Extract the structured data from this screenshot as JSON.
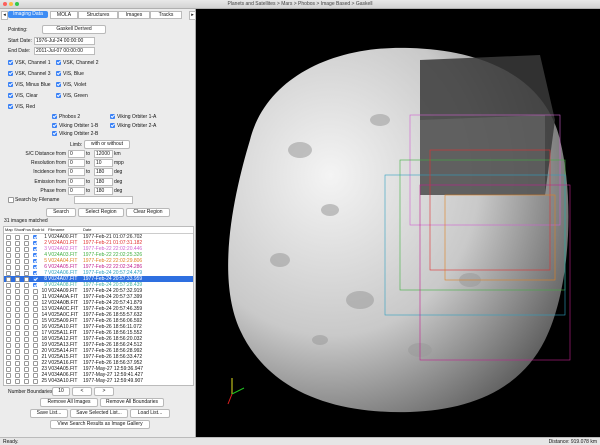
{
  "window": {
    "title": "Planets and Satellites > Mars > Phobos > Image Based > Gaskell"
  },
  "tabs": [
    "Imaging Data",
    "MOLA",
    "Structures",
    "Images",
    "Tracks"
  ],
  "form": {
    "pointing_label": "Pointing:",
    "pointing_value": "Gaskell Derived",
    "start_label": "Start Date:",
    "start_value": "1976-Jul-24 00:00:00",
    "end_label": "End Date:",
    "end_value": "2011-Jul-07 00:00:00",
    "filters": [
      "VSK, Channel 1",
      "VSK, Channel 2",
      "VSK, Channel 3",
      "VIS, Blue",
      "VIS, Minus Blue",
      "VIS, Violet",
      "VIS, Clear",
      "VIS, Green",
      "VIS, Red"
    ],
    "cameras": [
      "Phobos 2",
      "Viking Orbiter 1-A",
      "Viking Orbiter 1-B",
      "Viking Orbiter 2-A",
      "Viking Orbiter 2-B"
    ],
    "limb_label": "Limb:",
    "limb_value": "with or without",
    "ranges": [
      [
        "S/C Distance from",
        "0",
        "to",
        "12000",
        "km"
      ],
      [
        "Resolution from",
        "0",
        "to",
        "10",
        "mpp"
      ],
      [
        "Incidence from",
        "0",
        "to",
        "180",
        "deg"
      ],
      [
        "Emission from",
        "0",
        "to",
        "180",
        "deg"
      ],
      [
        "Phase from",
        "0",
        "to",
        "180",
        "deg"
      ]
    ],
    "search_filename": "Search by Filename",
    "buttons": [
      "Search",
      "Select Region",
      "Clear Region"
    ],
    "matched": "31 images matched"
  },
  "list": {
    "headers": [
      "Map",
      "Show",
      "Frus",
      "Bndr",
      "Id",
      "Filename",
      "Date"
    ],
    "rows": [
      {
        "id": 1,
        "file": "V024A00.FIT",
        "date": "1977-Feb-21 01:07:26.702",
        "color": "#222222"
      },
      {
        "id": 2,
        "file": "V024A01.FIT",
        "date": "1977-Feb-21 01:07:31.182",
        "color": "#e03030"
      },
      {
        "id": 3,
        "file": "V024A02.FIT",
        "date": "1977-Feb-22 22:02:20.446",
        "color": "#d060d0"
      },
      {
        "id": 4,
        "file": "V024A03.FIT",
        "date": "1977-Feb-22 22:02:25.326",
        "color": "#40b040"
      },
      {
        "id": 5,
        "file": "V024A04.FIT",
        "date": "1977-Feb-22 22:02:29.806",
        "color": "#e08020"
      },
      {
        "id": 6,
        "file": "V024A05.FIT",
        "date": "1977-Feb-22 22:02:34.286",
        "color": "#c02090"
      },
      {
        "id": 7,
        "file": "V024A06.FIT",
        "date": "1977-Feb-24 20:57:24.479",
        "color": "#30a0c0"
      },
      {
        "id": 8,
        "file": "V024A07.FIT",
        "date": "1977-Feb-24 20:57:33.959",
        "color": "#ffffff",
        "selected": true
      },
      {
        "id": 9,
        "file": "V024A08.FIT",
        "date": "1977-Feb-24 20:57:28.439",
        "color": "#40b0a0"
      },
      {
        "id": 10,
        "file": "V024A09.FIT",
        "date": "1977-Feb-24 20:57:32.919"
      },
      {
        "id": 11,
        "file": "V024A0A.FIT",
        "date": "1977-Feb-24 20:57:37.399"
      },
      {
        "id": 12,
        "file": "V024A0B.FIT",
        "date": "1977-Feb-24 20:57:41.879"
      },
      {
        "id": 13,
        "file": "V024A0C.FIT",
        "date": "1977-Feb-24 20:57:46.359"
      },
      {
        "id": 14,
        "file": "V025A0C.FIT",
        "date": "1977-Feb-26 18:55:57.632"
      },
      {
        "id": 15,
        "file": "V025A09.FIT",
        "date": "1977-Feb-26 18:56:06.592"
      },
      {
        "id": 16,
        "file": "V025A10.FIT",
        "date": "1977-Feb-26 18:56:11.072"
      },
      {
        "id": 17,
        "file": "V025A11.FIT",
        "date": "1977-Feb-26 18:56:15.552"
      },
      {
        "id": 18,
        "file": "V025A12.FIT",
        "date": "1977-Feb-26 18:56:20.032"
      },
      {
        "id": 19,
        "file": "V025A13.FIT",
        "date": "1977-Feb-26 18:56:24.512"
      },
      {
        "id": 20,
        "file": "V025A14.FIT",
        "date": "1977-Feb-26 18:56:28.992"
      },
      {
        "id": 21,
        "file": "V025A15.FIT",
        "date": "1977-Feb-26 18:56:33.472"
      },
      {
        "id": 22,
        "file": "V025A16.FIT",
        "date": "1977-Feb-26 18:56:37.952"
      },
      {
        "id": 23,
        "file": "V034A05.FIT",
        "date": "1977-May-27 12:59:36.947"
      },
      {
        "id": 24,
        "file": "V034A06.FIT",
        "date": "1977-May-27 12:59:41.427"
      },
      {
        "id": 25,
        "file": "V043A10.FIT",
        "date": "1977-May-27 12:59:49.907"
      }
    ]
  },
  "bottom": {
    "boundaries_label": "Number Boundaries:",
    "boundaries_value": "10",
    "prev": "<",
    "next": ">",
    "buttons": [
      "Remove All Images",
      "Remove All Boundaries",
      "Save List...",
      "Save Selected List...",
      "Load List...",
      "View Search Results as Image Gallery"
    ]
  },
  "status": {
    "left": "Ready.",
    "right": "Distance: 919.078 km"
  }
}
